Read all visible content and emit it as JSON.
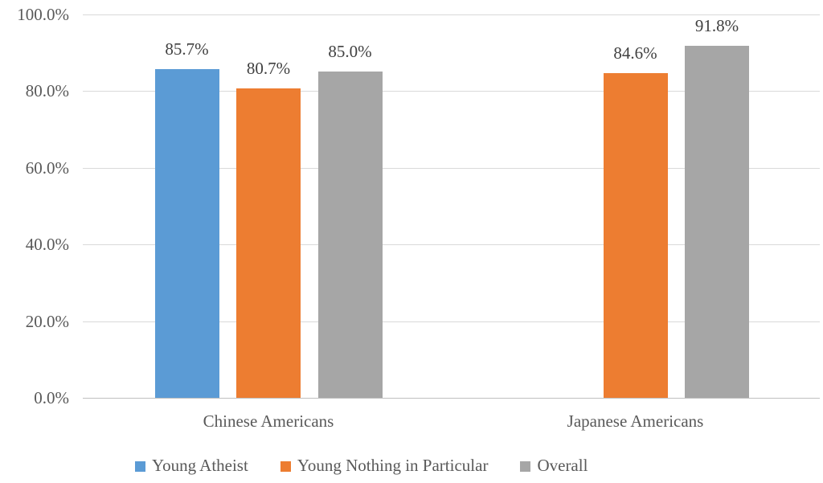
{
  "chart_data": {
    "type": "bar",
    "categories": [
      "Chinese Americans",
      "Japanese Americans"
    ],
    "series": [
      {
        "name": "Young Atheist",
        "color": "#5B9BD5",
        "values": [
          85.7,
          null
        ],
        "labels": [
          "85.7%",
          null
        ]
      },
      {
        "name": "Young Nothing in Particular",
        "color": "#ED7D31",
        "values": [
          80.7,
          84.6
        ],
        "labels": [
          "80.7%",
          "84.6%"
        ]
      },
      {
        "name": "Overall",
        "color": "#A6A6A6",
        "values": [
          85.0,
          91.8
        ],
        "labels": [
          "85.0%",
          "91.8%"
        ]
      }
    ],
    "y_axis": {
      "min": 0,
      "max": 100,
      "ticks": [
        {
          "label": "0.0%",
          "value": 0
        },
        {
          "label": "20.0%",
          "value": 20
        },
        {
          "label": "40.0%",
          "value": 40
        },
        {
          "label": "60.0%",
          "value": 60
        },
        {
          "label": "80.0%",
          "value": 80
        },
        {
          "label": "100.0%",
          "value": 100
        }
      ]
    },
    "grid": true,
    "legend_position": "bottom",
    "colors": {
      "gridline": "#D9D9D9",
      "axis_line": "#BFBFBF",
      "axis_text": "#595959",
      "data_label_text": "#404040",
      "background": "#FFFFFF"
    }
  }
}
